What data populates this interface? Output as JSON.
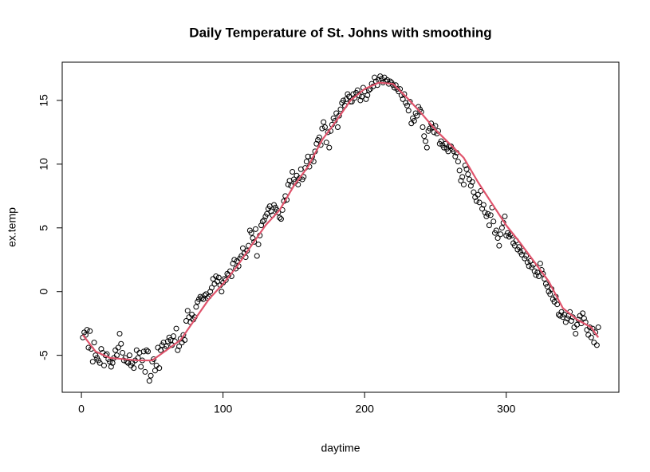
{
  "chart_data": {
    "type": "scatter",
    "title": "Daily Temperature of St. Johns with smoothing",
    "xlabel": "daytime",
    "ylabel": "ex.temp",
    "xlim": [
      -13.56,
      379.56
    ],
    "ylim": [
      -7.9,
      18.0
    ],
    "xticks": [
      0,
      100,
      200,
      300
    ],
    "yticks": [
      -5,
      0,
      5,
      10,
      15
    ],
    "series": [
      {
        "type": "scatter",
        "color": "#000000",
        "x": [
          1,
          2,
          3,
          4,
          5,
          6,
          7,
          8,
          9,
          10,
          11,
          12,
          13,
          14,
          15,
          16,
          17,
          18,
          19,
          20,
          21,
          22,
          23,
          24,
          25,
          26,
          27,
          28,
          29,
          30,
          31,
          32,
          33,
          34,
          35,
          36,
          37,
          38,
          39,
          40,
          41,
          42,
          43,
          44,
          45,
          46,
          47,
          48,
          49,
          50,
          51,
          52,
          53,
          54,
          55,
          56,
          57,
          58,
          59,
          60,
          61,
          62,
          63,
          64,
          65,
          66,
          67,
          68,
          69,
          70,
          71,
          72,
          73,
          74,
          75,
          76,
          77,
          78,
          79,
          80,
          81,
          82,
          83,
          84,
          85,
          86,
          87,
          88,
          89,
          90,
          91,
          92,
          93,
          94,
          95,
          96,
          97,
          98,
          99,
          100,
          101,
          102,
          103,
          104,
          105,
          106,
          107,
          108,
          109,
          110,
          111,
          112,
          113,
          114,
          115,
          116,
          117,
          118,
          119,
          120,
          121,
          122,
          123,
          124,
          125,
          126,
          127,
          128,
          129,
          130,
          131,
          132,
          133,
          134,
          135,
          136,
          137,
          138,
          139,
          140,
          141,
          142,
          143,
          144,
          145,
          146,
          147,
          148,
          149,
          150,
          151,
          152,
          153,
          154,
          155,
          156,
          157,
          158,
          159,
          160,
          161,
          162,
          163,
          164,
          165,
          166,
          167,
          168,
          169,
          170,
          171,
          172,
          173,
          174,
          175,
          176,
          177,
          178,
          179,
          180,
          181,
          182,
          183,
          184,
          185,
          186,
          187,
          188,
          189,
          190,
          191,
          192,
          193,
          194,
          195,
          196,
          197,
          198,
          199,
          200,
          201,
          202,
          203,
          204,
          205,
          206,
          207,
          208,
          209,
          210,
          211,
          212,
          213,
          214,
          215,
          216,
          217,
          218,
          219,
          220,
          221,
          222,
          223,
          224,
          225,
          226,
          227,
          228,
          229,
          230,
          231,
          232,
          233,
          234,
          235,
          236,
          237,
          238,
          239,
          240,
          241,
          242,
          243,
          244,
          245,
          246,
          247,
          248,
          249,
          250,
          251,
          252,
          253,
          254,
          255,
          256,
          257,
          258,
          259,
          260,
          261,
          262,
          263,
          264,
          265,
          266,
          267,
          268,
          269,
          270,
          271,
          272,
          273,
          274,
          275,
          276,
          277,
          278,
          279,
          280,
          281,
          282,
          283,
          284,
          285,
          286,
          287,
          288,
          289,
          290,
          291,
          292,
          293,
          294,
          295,
          296,
          297,
          298,
          299,
          300,
          301,
          302,
          303,
          304,
          305,
          306,
          307,
          308,
          309,
          310,
          311,
          312,
          313,
          314,
          315,
          316,
          317,
          318,
          319,
          320,
          321,
          322,
          323,
          324,
          325,
          326,
          327,
          328,
          329,
          330,
          331,
          332,
          333,
          334,
          335,
          336,
          337,
          338,
          339,
          340,
          341,
          342,
          343,
          344,
          345,
          346,
          347,
          348,
          349,
          350,
          351,
          352,
          353,
          354,
          355,
          356,
          357,
          358,
          359,
          360,
          361,
          362,
          363,
          364,
          365
        ],
        "values": [
          -3.6,
          -3.2,
          -3.4,
          -3.0,
          -4.4,
          -3.1,
          -4.5,
          -5.5,
          -4.0,
          -5.0,
          -5.2,
          -5.4,
          -5.6,
          -4.5,
          -4.8,
          -5.8,
          -5.0,
          -4.9,
          -5.3,
          -5.5,
          -5.9,
          -5.6,
          -5.2,
          -4.6,
          -5.0,
          -4.4,
          -3.3,
          -4.1,
          -4.8,
          -5.4,
          -5.2,
          -5.5,
          -5.6,
          -5.0,
          -5.8,
          -5.6,
          -6.0,
          -5.4,
          -4.6,
          -5.2,
          -4.8,
          -5.9,
          -5.4,
          -4.7,
          -6.3,
          -4.6,
          -4.7,
          -7.0,
          -6.6,
          -5.5,
          -5.3,
          -6.2,
          -5.8,
          -4.4,
          -6.0,
          -4.6,
          -4.2,
          -4.0,
          -4.5,
          -4.3,
          -3.9,
          -3.6,
          -3.8,
          -4.2,
          -3.5,
          -3.9,
          -2.9,
          -4.6,
          -4.3,
          -3.7,
          -4.0,
          -3.4,
          -3.8,
          -2.3,
          -1.5,
          -2.0,
          -2.4,
          -1.8,
          -2.2,
          -2.0,
          -1.2,
          -0.8,
          -0.6,
          -0.4,
          -0.5,
          -0.6,
          -0.3,
          -0.2,
          -0.5,
          -0.4,
          0.0,
          0.3,
          1.0,
          0.6,
          1.2,
          0.8,
          1.1,
          0.5,
          0.0,
          0.7,
          1.0,
          0.9,
          1.4,
          1.3,
          1.6,
          1.2,
          2.2,
          2.5,
          1.8,
          2.4,
          2.0,
          2.6,
          2.8,
          3.4,
          3.0,
          2.7,
          3.2,
          3.6,
          4.8,
          4.6,
          4.2,
          3.9,
          4.9,
          2.8,
          3.7,
          4.4,
          5.2,
          5.5,
          5.6,
          5.9,
          6.1,
          6.5,
          6.7,
          6.3,
          6.0,
          6.8,
          6.6,
          6.4,
          6.2,
          5.8,
          5.7,
          6.4,
          7.1,
          7.5,
          7.2,
          8.4,
          8.7,
          8.3,
          9.4,
          8.8,
          8.6,
          9.1,
          8.4,
          8.9,
          9.6,
          8.8,
          9.0,
          9.7,
          10.2,
          10.6,
          9.8,
          10.3,
          10.6,
          10.2,
          11.0,
          11.6,
          11.9,
          12.1,
          11.5,
          12.8,
          13.3,
          12.9,
          11.7,
          12.5,
          11.3,
          12.6,
          13.1,
          13.6,
          13.4,
          14.0,
          12.9,
          13.8,
          14.3,
          14.8,
          15.0,
          14.6,
          15.1,
          15.5,
          15.3,
          14.9,
          14.9,
          15.5,
          15.2,
          15.6,
          15.8,
          15.4,
          15.0,
          15.3,
          16.0,
          15.7,
          15.1,
          15.4,
          15.8,
          15.9,
          16.3,
          16.1,
          16.8,
          16.5,
          16.2,
          16.6,
          16.9,
          16.7,
          16.4,
          16.8,
          16.5,
          16.6,
          16.3,
          16.5,
          16.4,
          16.2,
          16.0,
          16.2,
          15.9,
          15.7,
          15.9,
          15.4,
          15.1,
          15.5,
          14.8,
          14.6,
          14.2,
          14.9,
          13.2,
          13.6,
          13.4,
          14.0,
          13.8,
          14.5,
          14.3,
          14.1,
          12.9,
          12.2,
          11.8,
          11.3,
          12.6,
          12.8,
          13.2,
          12.9,
          12.5,
          13.0,
          12.4,
          12.6,
          11.6,
          11.8,
          11.5,
          11.3,
          11.6,
          11.2,
          11.0,
          11.4,
          11.4,
          11.2,
          11.0,
          10.6,
          10.9,
          10.2,
          9.5,
          8.7,
          9.0,
          8.4,
          9.9,
          9.6,
          9.2,
          8.8,
          8.3,
          8.6,
          7.8,
          7.4,
          7.1,
          7.6,
          7.0,
          7.9,
          6.5,
          6.8,
          6.2,
          5.9,
          6.1,
          5.2,
          6.0,
          6.6,
          5.5,
          4.6,
          4.8,
          4.2,
          3.6,
          4.5,
          5.0,
          5.4,
          5.9,
          4.4,
          4.6,
          4.3,
          4.5,
          4.4,
          3.8,
          3.6,
          4.0,
          3.3,
          3.5,
          3.1,
          2.9,
          3.2,
          2.6,
          2.8,
          2.3,
          2.0,
          2.4,
          1.9,
          2.1,
          1.6,
          1.3,
          1.5,
          1.2,
          2.2,
          1.7,
          1.4,
          1.0,
          0.6,
          0.4,
          0.0,
          -0.2,
          0.2,
          -0.6,
          -0.8,
          -0.4,
          -1.0,
          -1.8,
          -1.9,
          -1.6,
          -2.0,
          -1.8,
          -2.4,
          -2.1,
          -1.9,
          -1.6,
          -2.3,
          -2.0,
          -2.8,
          -3.3,
          -2.6,
          -2.2,
          -1.9,
          -2.5,
          -1.7,
          -2.1,
          -2.4,
          -3.0,
          -3.4,
          -2.8,
          -3.6,
          -2.9,
          -4.0,
          -3.2,
          -4.2,
          -2.8
        ]
      },
      {
        "type": "line",
        "color": "#DF536B",
        "x": [
          1,
          10,
          20,
          30,
          40,
          50,
          60,
          70,
          80,
          90,
          100,
          110,
          120,
          130,
          140,
          150,
          160,
          170,
          180,
          190,
          200,
          210,
          220,
          230,
          240,
          250,
          260,
          270,
          280,
          290,
          300,
          310,
          320,
          330,
          340,
          350,
          360,
          365
        ],
        "values": [
          -3.4,
          -4.7,
          -5.2,
          -5.3,
          -5.4,
          -5.4,
          -4.6,
          -3.8,
          -2.2,
          -0.6,
          0.6,
          2.0,
          3.6,
          5.2,
          6.4,
          8.3,
          9.8,
          11.9,
          13.4,
          15.0,
          15.9,
          16.4,
          16.3,
          15.2,
          14.0,
          12.7,
          11.6,
          10.5,
          8.6,
          6.9,
          5.2,
          3.8,
          2.3,
          0.8,
          -1.3,
          -2.2,
          -2.8,
          -3.6
        ]
      }
    ]
  }
}
